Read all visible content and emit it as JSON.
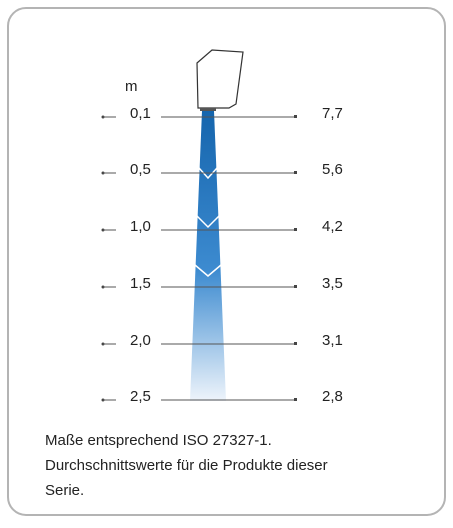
{
  "diagram": {
    "unit": "m",
    "rows": [
      {
        "distance": "0,1",
        "value": "7,7"
      },
      {
        "distance": "0,5",
        "value": "5,6"
      },
      {
        "distance": "1,0",
        "value": "4,2"
      },
      {
        "distance": "1,5",
        "value": "3,5"
      },
      {
        "distance": "2,0",
        "value": "3,1"
      },
      {
        "distance": "2,5",
        "value": "2,8"
      }
    ],
    "caption": [
      "Maße entsprechend ISO 27327-1.",
      "Durchschnittswerte für die Produkte dieser",
      "Serie."
    ]
  }
}
